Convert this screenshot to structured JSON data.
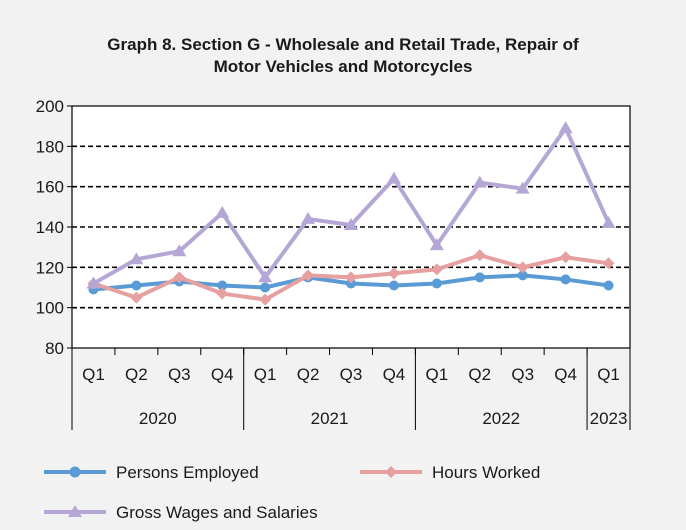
{
  "chart_data": {
    "type": "line",
    "title_line1": "Graph 8. Section G - Wholesale and Retail Trade, Repair of",
    "title_line2": "Motor Vehicles and Motorcycles",
    "quarters": [
      "Q1",
      "Q2",
      "Q3",
      "Q4",
      "Q1",
      "Q2",
      "Q3",
      "Q4",
      "Q1",
      "Q2",
      "Q3",
      "Q4",
      "Q1"
    ],
    "years": [
      "2020",
      "2021",
      "2022",
      "2023"
    ],
    "ylim": [
      80,
      200
    ],
    "yticks": [
      80,
      100,
      120,
      140,
      160,
      180,
      200
    ],
    "grid": "dashed horizontal at 100-180",
    "legend_position": "bottom",
    "series": [
      {
        "name": "Persons Employed",
        "color": "#5b9bd5",
        "marker": "circle",
        "values": [
          109,
          111,
          113,
          111,
          110,
          115,
          112,
          111,
          112,
          115,
          116,
          114,
          111
        ]
      },
      {
        "name": "Hours Worked",
        "color": "#e6a0a0",
        "marker": "diamond",
        "values": [
          112,
          105,
          115,
          107,
          104,
          116,
          115,
          117,
          119,
          126,
          120,
          125,
          122
        ]
      },
      {
        "name": "Gross Wages and Salaries",
        "color": "#b4a7d6",
        "marker": "triangle",
        "values": [
          112,
          124,
          128,
          147,
          115,
          144,
          141,
          164,
          131,
          162,
          159,
          189,
          142
        ]
      }
    ]
  }
}
